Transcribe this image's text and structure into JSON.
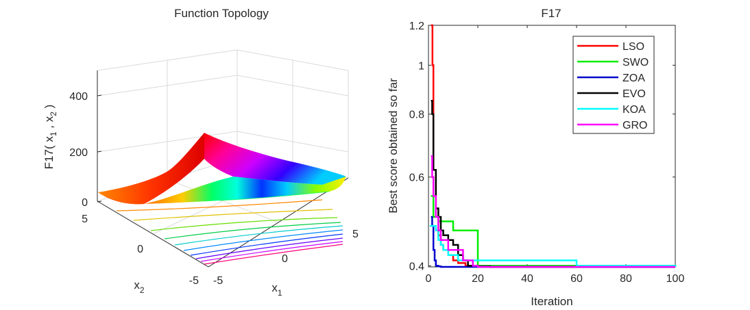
{
  "chart_data": [
    {
      "type": "surface",
      "title": "Function Topology",
      "zlabel_parts": [
        "F17( x",
        "1",
        " , x",
        "2",
        " )"
      ],
      "xlabel": {
        "main": "x",
        "sub": "1"
      },
      "ylabel": {
        "main": "x",
        "sub": "2"
      },
      "x_ticks": [
        "-5",
        "0",
        "5"
      ],
      "y_ticks": [
        "-5",
        "0",
        "5"
      ],
      "z_ticks": [
        "0",
        "200",
        "400"
      ],
      "xlim": [
        -5,
        5
      ],
      "ylim": [
        -5,
        5
      ],
      "zlim": [
        0,
        500
      ],
      "colormap": "hsv",
      "contours_on_floor": true,
      "grid": true
    },
    {
      "type": "line",
      "title": "F17",
      "xlabel": "Iteration",
      "ylabel": "Best score obtained so far",
      "xlim": [
        0,
        100
      ],
      "ylim": [
        0.398,
        1.2
      ],
      "yscale": "log",
      "x_ticks": [
        "0",
        "20",
        "40",
        "60",
        "80",
        "100"
      ],
      "y_ticks": [
        {
          "label": "0.4",
          "value": 0.4
        },
        {
          "label": "0.6",
          "value": 0.6
        },
        {
          "label": "0.8",
          "value": 0.8
        },
        {
          "label": "1",
          "value": 1.0
        },
        {
          "label": "1.2",
          "value": 1.2
        }
      ],
      "legend_position": "top-right",
      "series": [
        {
          "name": "LSO",
          "color": "#ff0000",
          "x": [
            1,
            1.6,
            2,
            3,
            4,
            5,
            6,
            7,
            8,
            10,
            12,
            15,
            20,
            100
          ],
          "y": [
            1.2,
            1.0,
            0.62,
            0.5,
            0.46,
            0.44,
            0.43,
            0.43,
            0.42,
            0.41,
            0.405,
            0.4,
            0.398,
            0.398
          ]
        },
        {
          "name": "SWO",
          "color": "#00ee00",
          "x": [
            1,
            2,
            3,
            4,
            6,
            8,
            10,
            12,
            14,
            16,
            18,
            20,
            36,
            100
          ],
          "y": [
            0.55,
            0.5,
            0.5,
            0.49,
            0.49,
            0.49,
            0.47,
            0.47,
            0.47,
            0.47,
            0.47,
            0.4,
            0.4,
            0.398
          ]
        },
        {
          "name": "ZOA",
          "color": "#0000cc",
          "x": [
            1,
            1.5,
            2,
            2.5,
            3,
            4,
            5,
            100
          ],
          "y": [
            0.5,
            0.48,
            0.43,
            0.41,
            0.4,
            0.399,
            0.398,
            0.398
          ]
        },
        {
          "name": "EVO",
          "color": "#000000",
          "x": [
            1,
            1.5,
            2,
            3,
            4,
            5,
            6,
            8,
            10,
            12,
            14,
            16,
            20,
            25,
            100
          ],
          "y": [
            0.85,
            0.8,
            0.62,
            0.52,
            0.5,
            0.47,
            0.46,
            0.45,
            0.44,
            0.42,
            0.41,
            0.4,
            0.399,
            0.398,
            0.398
          ]
        },
        {
          "name": "KOA",
          "color": "#00ffff",
          "x": [
            0.5,
            3,
            4,
            5,
            6,
            8,
            12,
            16,
            22,
            28,
            36,
            48,
            56,
            60,
            74,
            100
          ],
          "y": [
            0.48,
            0.47,
            0.45,
            0.44,
            0.43,
            0.42,
            0.41,
            0.41,
            0.41,
            0.41,
            0.41,
            0.41,
            0.41,
            0.4,
            0.4,
            0.398
          ]
        },
        {
          "name": "GRO",
          "color": "#ff00ff",
          "x": [
            1,
            1.5,
            2,
            3,
            4,
            5,
            6,
            8,
            10,
            12,
            14,
            16,
            18,
            20,
            100
          ],
          "y": [
            0.66,
            0.6,
            0.55,
            0.5,
            0.47,
            0.45,
            0.45,
            0.43,
            0.43,
            0.43,
            0.41,
            0.41,
            0.4,
            0.398,
            0.398
          ]
        }
      ]
    }
  ]
}
